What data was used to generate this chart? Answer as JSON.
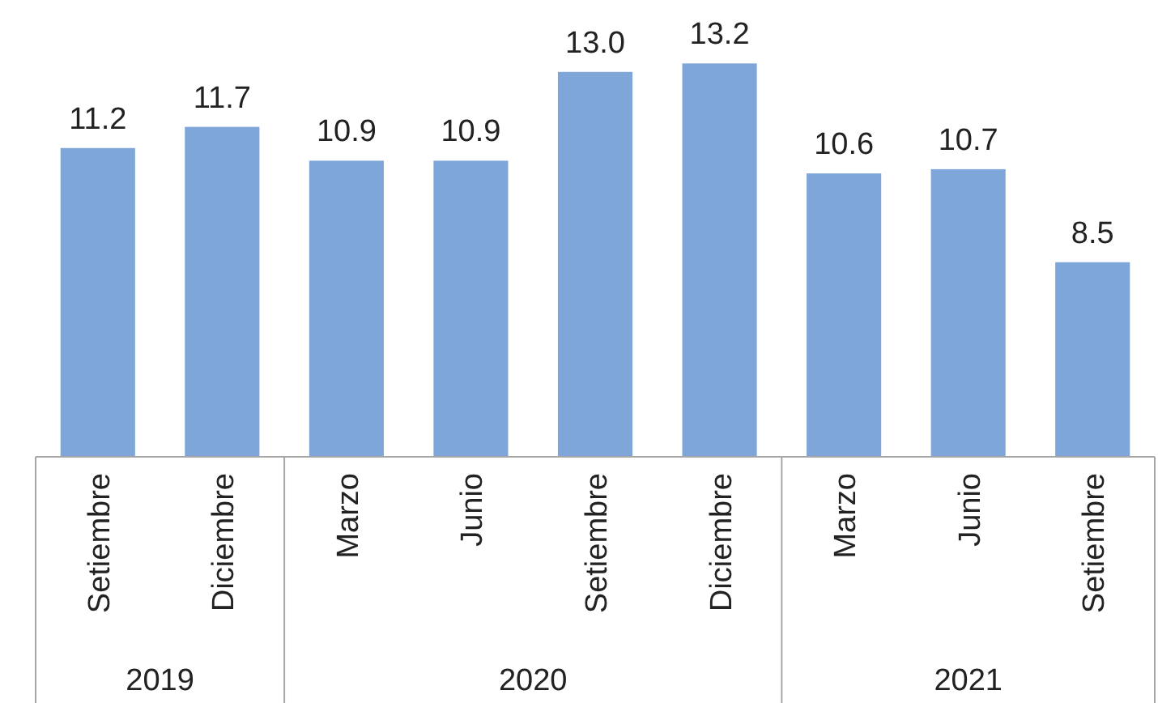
{
  "chart_data": {
    "type": "bar",
    "categories": [
      "Setiembre",
      "Diciembre",
      "Marzo",
      "Junio",
      "Setiembre",
      "Diciembre",
      "Marzo",
      "Junio",
      "Setiembre"
    ],
    "values": [
      11.2,
      11.7,
      10.9,
      10.9,
      13.0,
      13.2,
      10.6,
      10.7,
      8.5
    ],
    "value_labels": [
      "11.2",
      "11.7",
      "10.9",
      "10.9",
      "13.0",
      "13.2",
      "10.6",
      "10.7",
      "8.5"
    ],
    "color": "#7ea6d9",
    "ylim": [
      3.9,
      14.7
    ],
    "annotations": [
      "2019",
      "2020",
      "2021"
    ]
  }
}
